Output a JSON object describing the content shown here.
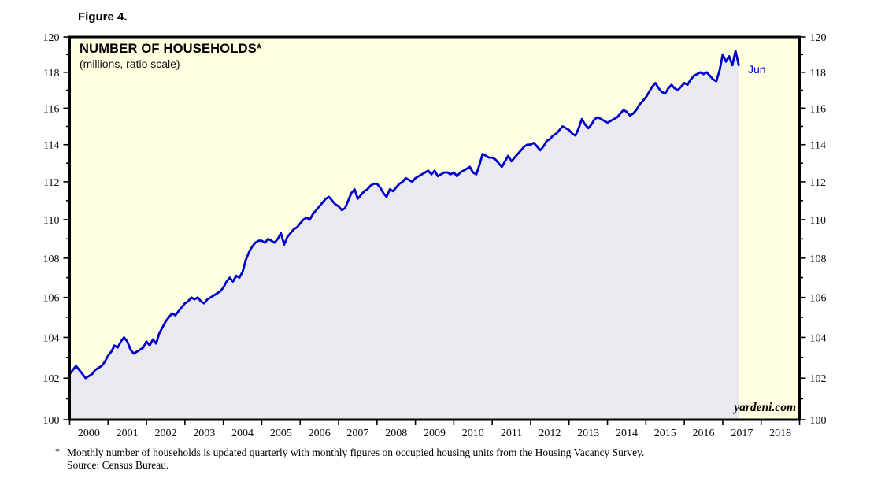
{
  "figure_label": "Figure 4.",
  "footnote": {
    "marker": "*",
    "line1": "Monthly number of households is updated quarterly with monthly figures on occupied housing units from the Housing Vacancy Survey.",
    "line2": "Source: Census Bureau."
  },
  "chart_data": {
    "type": "line",
    "title": "NUMBER OF HOUSEHOLDS*",
    "subtitle": "(millions, ratio scale)",
    "watermark": "yardeni.com",
    "end_label": "Jun",
    "y_axis": {
      "min": 100,
      "max": 120,
      "scale": "ratio (log)",
      "major_tick_step": 2,
      "minor_tick_step": 1,
      "labels_both_sides": true,
      "y_tick_labels": [
        "100",
        "102",
        "104",
        "106",
        "108",
        "110",
        "112",
        "114",
        "116",
        "118",
        "120"
      ]
    },
    "x_axis": {
      "start_year": 2000,
      "end_year": 2019,
      "tick_labels": [
        "2000",
        "2001",
        "2002",
        "2003",
        "2004",
        "2005",
        "2006",
        "2007",
        "2008",
        "2009",
        "2010",
        "2011",
        "2012",
        "2013",
        "2014",
        "2015",
        "2016",
        "2017",
        "2018"
      ]
    },
    "colors": {
      "line": "#0000cc",
      "plot_background": "#ffffe1",
      "area_fill": "#eaeaee",
      "frame": "#000000",
      "end_label_color": "#0000cc"
    },
    "series": [
      {
        "name": "Number of households (millions)",
        "frequency": "monthly",
        "start": "2000-01",
        "end": "2017-06",
        "shaded_under": true,
        "values": [
          102.2,
          102.4,
          102.6,
          102.4,
          102.2,
          102.0,
          102.1,
          102.2,
          102.4,
          102.5,
          102.6,
          102.8,
          103.1,
          103.3,
          103.6,
          103.5,
          103.8,
          104.0,
          103.8,
          103.4,
          103.2,
          103.3,
          103.4,
          103.5,
          103.8,
          103.6,
          103.9,
          103.7,
          104.2,
          104.5,
          104.8,
          105.0,
          105.2,
          105.1,
          105.3,
          105.5,
          105.7,
          105.8,
          106.0,
          105.9,
          106.0,
          105.8,
          105.7,
          105.9,
          106.0,
          106.1,
          106.2,
          106.3,
          106.5,
          106.8,
          107.0,
          106.8,
          107.1,
          107.0,
          107.3,
          107.9,
          108.3,
          108.6,
          108.8,
          108.9,
          108.9,
          108.8,
          109.0,
          108.9,
          108.8,
          109.0,
          109.3,
          108.7,
          109.1,
          109.3,
          109.5,
          109.6,
          109.8,
          110.0,
          110.1,
          110.0,
          110.3,
          110.5,
          110.7,
          110.9,
          111.1,
          111.2,
          111.0,
          110.8,
          110.7,
          110.5,
          110.6,
          111.0,
          111.4,
          111.6,
          111.1,
          111.3,
          111.5,
          111.6,
          111.8,
          111.9,
          111.9,
          111.7,
          111.4,
          111.2,
          111.6,
          111.5,
          111.7,
          111.9,
          112.0,
          112.2,
          112.1,
          112.0,
          112.2,
          112.3,
          112.4,
          112.5,
          112.6,
          112.4,
          112.6,
          112.3,
          112.4,
          112.5,
          112.5,
          112.4,
          112.5,
          112.3,
          112.5,
          112.6,
          112.7,
          112.8,
          112.5,
          112.4,
          112.9,
          113.5,
          113.4,
          113.3,
          113.3,
          113.2,
          113.0,
          112.8,
          113.1,
          113.4,
          113.1,
          113.3,
          113.5,
          113.7,
          113.9,
          114.0,
          114.0,
          114.1,
          113.9,
          113.7,
          113.9,
          114.2,
          114.3,
          114.5,
          114.6,
          114.8,
          115.0,
          114.9,
          114.8,
          114.6,
          114.5,
          114.9,
          115.4,
          115.1,
          114.9,
          115.1,
          115.4,
          115.5,
          115.4,
          115.3,
          115.2,
          115.3,
          115.4,
          115.5,
          115.7,
          115.9,
          115.8,
          115.6,
          115.7,
          115.9,
          116.2,
          116.4,
          116.6,
          116.9,
          117.2,
          117.4,
          117.1,
          116.9,
          116.8,
          117.1,
          117.3,
          117.1,
          117.0,
          117.2,
          117.4,
          117.3,
          117.6,
          117.8,
          117.9,
          118.0,
          117.9,
          118.0,
          117.8,
          117.6,
          117.5,
          118.1,
          119.0,
          118.6,
          118.9,
          118.4,
          119.2,
          118.4
        ]
      }
    ]
  }
}
